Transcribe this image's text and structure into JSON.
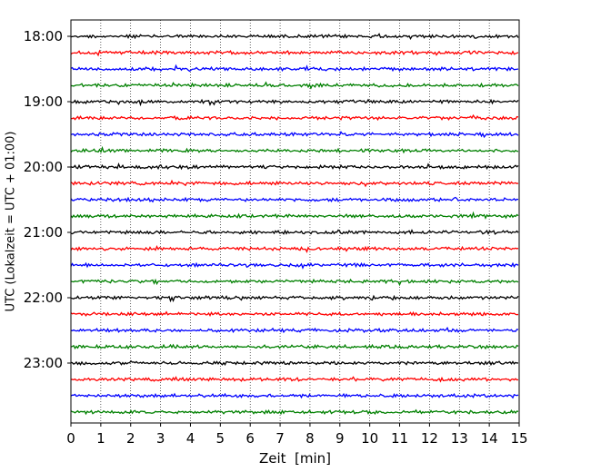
{
  "chart_data": {
    "type": "line",
    "title": "",
    "xlabel": "Zeit  [min]",
    "ylabel": "UTC (Lokalzeit = UTC + 01:00)",
    "xlim": [
      0,
      15
    ],
    "x_ticks": [
      "0",
      "1",
      "2",
      "3",
      "4",
      "5",
      "6",
      "7",
      "8",
      "9",
      "10",
      "11",
      "12",
      "13",
      "14",
      "15"
    ],
    "y_tick_labels": [
      "18:00",
      "19:00",
      "20:00",
      "21:00",
      "22:00",
      "23:00"
    ],
    "grid": {
      "x": true,
      "y": false,
      "style": "dotted"
    },
    "trace_interval_min": 15,
    "start_time": "18:00",
    "trace_count": 24,
    "trace_colors": [
      "#000000",
      "#ff0000",
      "#0000ff",
      "#008000"
    ]
  }
}
